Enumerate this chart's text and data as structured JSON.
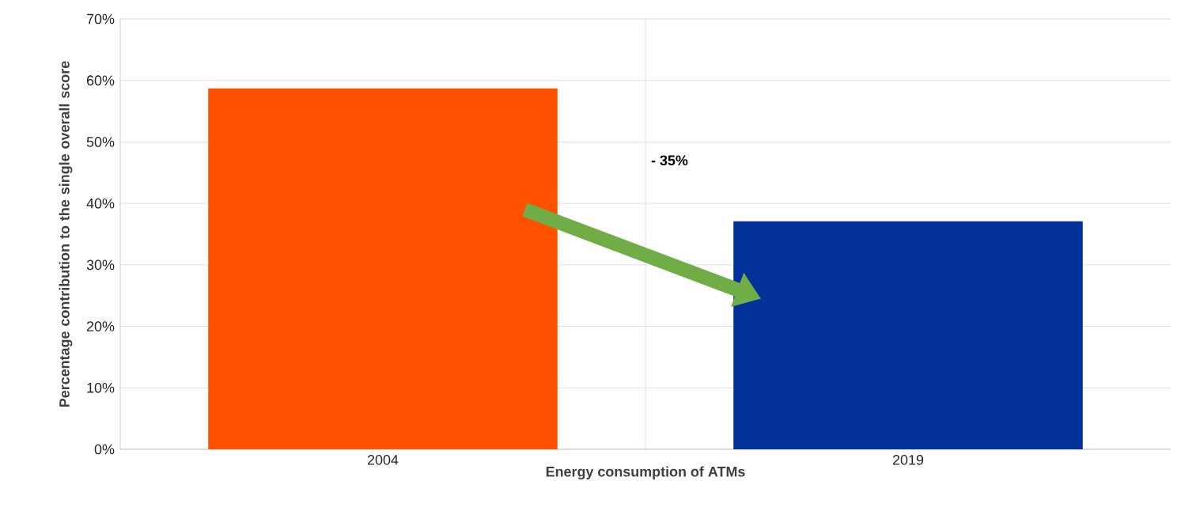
{
  "chart_data": {
    "type": "bar",
    "xlabel": "Energy consumption of ATMs",
    "ylabel": "Percentage contribution to the single overall score",
    "categories": [
      "2004",
      "2019"
    ],
    "values": [
      58.7,
      37.1
    ],
    "colors": [
      "#ff5000",
      "#003299"
    ],
    "ylim": [
      0,
      70
    ],
    "yticks": [
      {
        "value": 0,
        "label": "0%"
      },
      {
        "value": 10,
        "label": "10%"
      },
      {
        "value": 20,
        "label": "20%"
      },
      {
        "value": 30,
        "label": "30%"
      },
      {
        "value": 40,
        "label": "40%"
      },
      {
        "value": 50,
        "label": "50%"
      },
      {
        "value": 60,
        "label": "60%"
      },
      {
        "value": 70,
        "label": "70%"
      }
    ],
    "grid": "y",
    "annotations": [
      "- 35%"
    ]
  }
}
